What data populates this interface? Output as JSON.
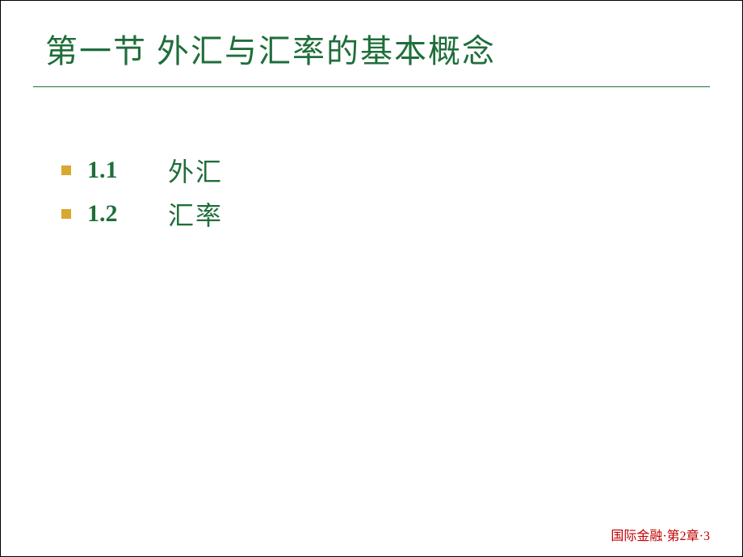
{
  "slide": {
    "title": "第一节 外汇与汇率的基本概念",
    "title_color": "#1f6e3a",
    "underline_color": "#1f6e3a",
    "items": [
      {
        "number": "1.1",
        "text": "外汇"
      },
      {
        "number": "1.2",
        "text": "汇率"
      }
    ],
    "bullet_color": "#d8a830",
    "item_color": "#1f6e3a",
    "footer": "国际金融·第2章·3",
    "footer_color": "#c00000",
    "background_color": "#ffffff"
  }
}
